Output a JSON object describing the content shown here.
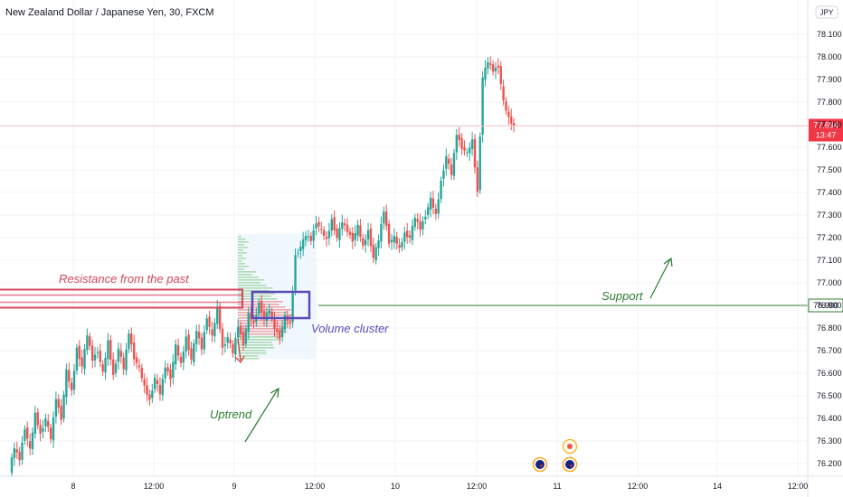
{
  "header": {
    "title": "New Zealand Dollar / Japanese Yen, 30, FXCM"
  },
  "currency_badge": "JPY",
  "chart_data": {
    "type": "candlestick",
    "title": "New Zealand Dollar / Japanese Yen, 30, FXCM",
    "y_ticks": [
      "78.100",
      "78.000",
      "77.900",
      "77.800",
      "77.700",
      "77.600",
      "77.500",
      "77.400",
      "77.300",
      "77.200",
      "77.100",
      "77.000",
      "76.900",
      "76.800",
      "76.700",
      "76.600",
      "76.500",
      "76.400",
      "76.300",
      "76.200"
    ],
    "ylim": [
      76.15,
      78.2
    ],
    "x_ticks": [
      "8",
      "12:00",
      "9",
      "12:00",
      "10",
      "12:00",
      "11",
      "12:00",
      "14",
      "12:00"
    ],
    "current_price": {
      "value": "77.694",
      "countdown": "13:47",
      "color": "#f23645"
    },
    "support_price": {
      "value": "76.900",
      "color": "#2e7d32"
    },
    "candle_colors": {
      "up": "#26a69a",
      "down": "#ef5350"
    },
    "price_path": [
      76.17,
      76.27,
      76.22,
      76.36,
      76.26,
      76.42,
      76.33,
      76.4,
      76.31,
      76.49,
      76.4,
      76.61,
      76.52,
      76.71,
      76.63,
      76.77,
      76.66,
      76.7,
      76.6,
      76.74,
      76.59,
      76.71,
      76.62,
      76.78,
      76.67,
      76.62,
      76.54,
      76.48,
      76.58,
      76.51,
      76.63,
      76.58,
      76.72,
      76.64,
      76.76,
      76.66,
      76.79,
      76.71,
      76.85,
      76.76,
      76.89,
      76.71,
      76.76,
      76.69,
      76.81,
      76.73,
      76.86,
      76.82,
      76.91,
      76.84,
      76.88,
      76.8,
      76.76,
      76.85,
      76.82,
      77.12,
      77.16,
      77.21,
      77.19,
      77.27,
      77.23,
      77.19,
      77.28,
      77.2,
      77.27,
      77.23,
      77.19,
      77.25,
      77.16,
      77.23,
      77.11,
      77.19,
      77.32,
      77.18,
      77.2,
      77.15,
      77.22,
      77.2,
      77.29,
      77.24,
      77.3,
      77.37,
      77.3,
      77.45,
      77.56,
      77.48,
      77.66,
      77.6,
      77.57,
      77.63,
      77.4,
      77.91,
      77.98,
      77.94,
      77.96,
      77.8,
      77.73,
      77.69
    ],
    "series": [],
    "annotations": {
      "resistance": {
        "label": "Resistance from the past",
        "price": [
          76.89,
          76.97
        ],
        "color": "#d6475b"
      },
      "support": {
        "label": "Support",
        "price": 76.9,
        "color": "#2e7d32"
      },
      "volume_cluster": {
        "label": "Volume cluster",
        "color": "#5b4bb7"
      },
      "uptrend": {
        "label": "Uptrend",
        "color": "#2e7d32"
      }
    },
    "event_markers": [
      "NZ flag",
      "NZ flag",
      "red dot"
    ],
    "grid": true,
    "legend": "none"
  }
}
